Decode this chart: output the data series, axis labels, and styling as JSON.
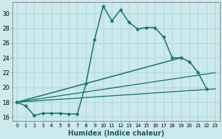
{
  "xlabel": "Humidex (Indice chaleur)",
  "background_color": "#cce9ed",
  "grid_color": "#b0d8dc",
  "line_color": "#1a7a6e",
  "xlim": [
    -0.5,
    23.5
  ],
  "ylim": [
    15.5,
    31.5
  ],
  "xticks": [
    0,
    1,
    2,
    3,
    4,
    5,
    6,
    7,
    8,
    9,
    10,
    11,
    12,
    13,
    14,
    15,
    16,
    17,
    18,
    19,
    20,
    21,
    22,
    23
  ],
  "yticks": [
    16,
    18,
    20,
    22,
    24,
    26,
    28,
    30
  ],
  "curve1_x": [
    0,
    1,
    2,
    3,
    4,
    5,
    6,
    7,
    8,
    9,
    10,
    11,
    12,
    13,
    14,
    15,
    16,
    17,
    18,
    19
  ],
  "curve1_y": [
    18,
    17.5,
    16.2,
    16.5,
    16.5,
    16.5,
    16.4,
    16.4,
    20.5,
    26.5,
    31.0,
    29.0,
    30.5,
    28.8,
    27.9,
    28.1,
    28.1,
    26.8,
    24.0,
    24.0
  ],
  "curve2_x": [
    0,
    19,
    20,
    21,
    22
  ],
  "curve2_y": [
    18,
    24.0,
    23.5,
    22.0,
    19.8
  ],
  "line3_x": [
    0,
    23
  ],
  "line3_y": [
    18,
    22.0
  ],
  "line4_x": [
    0,
    23
  ],
  "line4_y": [
    18,
    19.8
  ]
}
